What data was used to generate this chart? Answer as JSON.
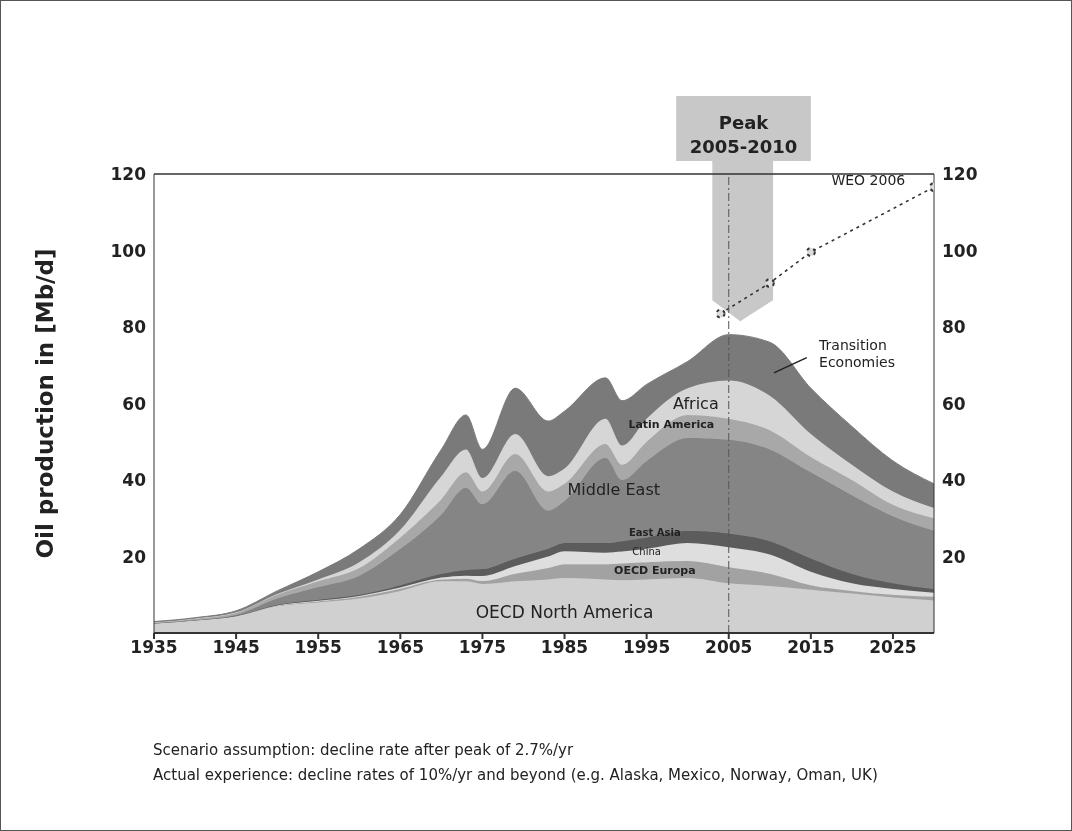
{
  "chart_data": {
    "type": "area",
    "stacked": true,
    "ylabel": "Oil production in [Mb/d]",
    "x": [
      1935,
      1940,
      1945,
      1950,
      1955,
      1960,
      1965,
      1970,
      1973,
      1975,
      1979,
      1983,
      1985,
      1990,
      1992,
      1995,
      2000,
      2005,
      2010,
      2015,
      2020,
      2025,
      2030
    ],
    "series": [
      {
        "name": "OECD North America",
        "color": "#d0d0d0",
        "values": [
          2.6,
          3.4,
          4.5,
          7,
          8,
          9,
          11,
          13.5,
          13.5,
          12.8,
          13.5,
          14,
          14.4,
          14,
          13.8,
          14,
          14.4,
          13,
          12.3,
          11.3,
          10.3,
          9.3,
          8.5
        ]
      },
      {
        "name": "OECD Europa",
        "color": "#a2a2a2",
        "values": [
          0,
          0,
          0,
          0.2,
          0.3,
          0.5,
          0.6,
          0.5,
          0.7,
          0.8,
          2,
          3,
          3.6,
          4,
          4.4,
          4.5,
          4.4,
          4.2,
          3.2,
          1.2,
          0.7,
          0.7,
          1
        ]
      },
      {
        "name": "China",
        "color": "#dedede",
        "values": [
          0,
          0,
          0,
          0,
          0.1,
          0.2,
          0.3,
          0.5,
          0.8,
          1.3,
          2,
          3,
          3.4,
          3,
          3.1,
          3.5,
          4.7,
          5.2,
          5,
          3.5,
          2,
          1.5,
          1
        ]
      },
      {
        "name": "East Asia",
        "color": "#5c5c5c",
        "values": [
          0,
          0,
          0,
          0.2,
          0.3,
          0.3,
          0.6,
          1,
          1.5,
          1.8,
          2,
          2,
          2.1,
          2.5,
          2.7,
          3,
          3.2,
          3.6,
          3.5,
          3.5,
          2.5,
          1.5,
          1
        ]
      },
      {
        "name": "Middle East",
        "color": "#858585",
        "values": [
          0,
          0,
          0.3,
          1.6,
          3.3,
          5,
          9.5,
          15.5,
          21.5,
          17,
          22.9,
          10,
          11,
          22.3,
          16,
          20,
          24.3,
          24.5,
          24,
          22.5,
          20.5,
          17.5,
          15.2
        ]
      },
      {
        "name": "Latin America",
        "color": "#a8a8a8",
        "values": [
          0.2,
          0.4,
          0.6,
          1,
          1.5,
          2,
          3,
          4,
          4,
          3.3,
          4.4,
          5,
          4.5,
          3.6,
          4,
          5,
          6,
          5.5,
          5,
          4,
          4,
          3,
          3.3
        ]
      },
      {
        "name": "Africa",
        "color": "#d6d6d6",
        "values": [
          0,
          0,
          0,
          0.2,
          0.5,
          1.5,
          2,
          6,
          6,
          3.5,
          5.2,
          4,
          4,
          6.6,
          5,
          6,
          7,
          10,
          9,
          6,
          4,
          3.5,
          2.7
        ]
      },
      {
        "name": "Transition Economies",
        "color": "#7a7a7a",
        "values": [
          0.2,
          0.2,
          0.4,
          0.8,
          2,
          3.5,
          4,
          7,
          9,
          7.5,
          12,
          14.4,
          15,
          10.7,
          11.7,
          9,
          7,
          12,
          14,
          12,
          10,
          8,
          6.3
        ]
      },
      {
        "name": "WEO 2006",
        "type": "line",
        "color": "#333333",
        "marker": "circle",
        "line_style": "dotted",
        "x": [
          2004,
          2010,
          2015,
          2030
        ],
        "values": [
          83.5,
          91.5,
          99.6,
          116.6
        ]
      }
    ],
    "xlim": [
      1935,
      2030
    ],
    "xticks": [
      1935,
      1945,
      1955,
      1965,
      1975,
      1985,
      1995,
      2005,
      2015,
      2025
    ],
    "ylim": [
      0,
      120
    ],
    "yticks": [
      20,
      40,
      60,
      80,
      100,
      120
    ],
    "y2lim": [
      0,
      120
    ],
    "y2ticks": [
      20,
      40,
      60,
      80,
      100,
      120
    ],
    "ref_lines": [
      {
        "axis": "x",
        "value": 2005,
        "label": "Peak 2005-2010",
        "line_style": "dashed",
        "color": "#555555"
      }
    ],
    "annotations": [
      "Scenario assumption: decline rate after peak of 2.7%/yr",
      "Actual experience: decline rates of 10%/yr and beyond (e.g. Alaska, Mexico, Norway, Oman, UK)"
    ]
  }
}
